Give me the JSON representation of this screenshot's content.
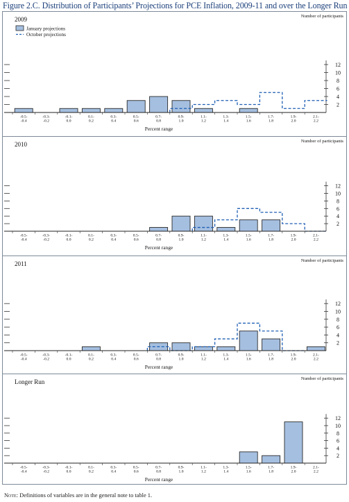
{
  "title": "Figure 2.C. Distribution of Participants’ Projections for PCE Inflation, 2009-11 and over the Longer Run",
  "note_label": "Note:",
  "note_text": " Definitions of variables are in the general note to table 1.",
  "legend": {
    "january": "January projections",
    "october": "October projections"
  },
  "colors": {
    "bar_fill": "#a5bfe0",
    "bar_stroke": "#2a2a2a",
    "dashed_line": "#1f5fb4",
    "title": "#1b3f7a"
  },
  "chart_data": [
    {
      "type": "bar",
      "title": "2009",
      "xlabel": "Percent range",
      "ylabel": "Number of participants",
      "ylim": [
        0,
        12
      ],
      "yticks": [
        2,
        4,
        6,
        8,
        10,
        12
      ],
      "categories": [
        [
          "-0.5-",
          "-0.4"
        ],
        [
          "-0.3-",
          "-0.2"
        ],
        [
          "-0.1-",
          "0.0"
        ],
        [
          "0.1-",
          "0.2"
        ],
        [
          "0.3-",
          "0.4"
        ],
        [
          "0.5-",
          "0.6"
        ],
        [
          "0.7-",
          "0.8"
        ],
        [
          "0.9-",
          "1.0"
        ],
        [
          "1.1-",
          "1.2"
        ],
        [
          "1.3-",
          "1.4"
        ],
        [
          "1.5-",
          "1.6"
        ],
        [
          "1.7-",
          "1.8"
        ],
        [
          "1.9-",
          "2.0"
        ],
        [
          "2.1-",
          "2.2"
        ]
      ],
      "series": [
        {
          "name": "January projections",
          "style": "bar",
          "values": [
            1,
            0,
            1,
            1,
            1,
            3,
            4,
            3,
            1,
            0,
            1,
            0,
            0,
            0
          ]
        },
        {
          "name": "October projections",
          "style": "dashed-step",
          "values": [
            0,
            0,
            0,
            0,
            0,
            0,
            0,
            1,
            2,
            3,
            2,
            5,
            1,
            3
          ]
        }
      ],
      "show_legend": true
    },
    {
      "type": "bar",
      "title": "2010",
      "xlabel": "Percent range",
      "ylabel": "Number of participants",
      "ylim": [
        0,
        12
      ],
      "yticks": [
        2,
        4,
        6,
        8,
        10,
        12
      ],
      "categories": [
        [
          "-0.5-",
          "-0.4"
        ],
        [
          "-0.3-",
          "-0.2"
        ],
        [
          "-0.1-",
          "0.0"
        ],
        [
          "0.1-",
          "0.2"
        ],
        [
          "0.3-",
          "0.4"
        ],
        [
          "0.5-",
          "0.6"
        ],
        [
          "0.7-",
          "0.8"
        ],
        [
          "0.9-",
          "1.0"
        ],
        [
          "1.1-",
          "1.2"
        ],
        [
          "1.3-",
          "1.4"
        ],
        [
          "1.5-",
          "1.6"
        ],
        [
          "1.7-",
          "1.8"
        ],
        [
          "1.9-",
          "2.0"
        ],
        [
          "2.1-",
          "2.2"
        ]
      ],
      "series": [
        {
          "name": "January projections",
          "style": "bar",
          "values": [
            0,
            0,
            0,
            0,
            0,
            0,
            1,
            4,
            4,
            1,
            3,
            3,
            0,
            0
          ]
        },
        {
          "name": "October projections",
          "style": "dashed-step",
          "values": [
            0,
            0,
            0,
            0,
            0,
            0,
            0,
            0,
            1,
            3,
            6,
            5,
            2,
            0
          ]
        }
      ],
      "show_legend": false
    },
    {
      "type": "bar",
      "title": "2011",
      "xlabel": "Percent range",
      "ylabel": "Number of participants",
      "ylim": [
        0,
        12
      ],
      "yticks": [
        2,
        4,
        6,
        8,
        10,
        12
      ],
      "categories": [
        [
          "-0.5-",
          "-0.4"
        ],
        [
          "-0.3-",
          "-0.2"
        ],
        [
          "-0.1-",
          "0.0"
        ],
        [
          "0.1-",
          "0.2"
        ],
        [
          "0.3-",
          "0.4"
        ],
        [
          "0.5-",
          "0.6"
        ],
        [
          "0.7-",
          "0.8"
        ],
        [
          "0.9-",
          "1.0"
        ],
        [
          "1.1-",
          "1.2"
        ],
        [
          "1.3-",
          "1.4"
        ],
        [
          "1.5-",
          "1.6"
        ],
        [
          "1.7-",
          "1.8"
        ],
        [
          "1.9-",
          "2.0"
        ],
        [
          "2.1-",
          "2.2"
        ]
      ],
      "series": [
        {
          "name": "January projections",
          "style": "bar",
          "values": [
            0,
            0,
            0,
            1,
            0,
            0,
            2,
            2,
            1,
            1,
            5,
            3,
            0,
            1
          ]
        },
        {
          "name": "October projections",
          "style": "dashed-step",
          "values": [
            0,
            0,
            0,
            0,
            0,
            0,
            1,
            0,
            1,
            3,
            7,
            5,
            0,
            0
          ]
        }
      ],
      "show_legend": false
    },
    {
      "type": "bar",
      "title": "Longer Run",
      "xlabel": "Percent range",
      "ylabel": "Number of participants",
      "ylim": [
        0,
        12
      ],
      "yticks": [
        2,
        4,
        6,
        8,
        10,
        12
      ],
      "categories": [
        [
          "-0.5-",
          "-0.4"
        ],
        [
          "-0.3-",
          "-0.2"
        ],
        [
          "-0.1-",
          "0.0"
        ],
        [
          "0.1-",
          "0.2"
        ],
        [
          "0.3-",
          "0.4"
        ],
        [
          "0.5-",
          "0.6"
        ],
        [
          "0.7-",
          "0.8"
        ],
        [
          "0.9-",
          "1.0"
        ],
        [
          "1.1-",
          "1.2"
        ],
        [
          "1.3-",
          "1.4"
        ],
        [
          "1.5-",
          "1.6"
        ],
        [
          "1.7-",
          "1.8"
        ],
        [
          "1.9-",
          "2.0"
        ],
        [
          "2.1-",
          "2.2"
        ]
      ],
      "series": [
        {
          "name": "January projections",
          "style": "bar",
          "values": [
            0,
            0,
            0,
            0,
            0,
            0,
            0,
            0,
            0,
            0,
            3,
            2,
            11,
            0
          ]
        }
      ],
      "show_legend": false
    }
  ]
}
